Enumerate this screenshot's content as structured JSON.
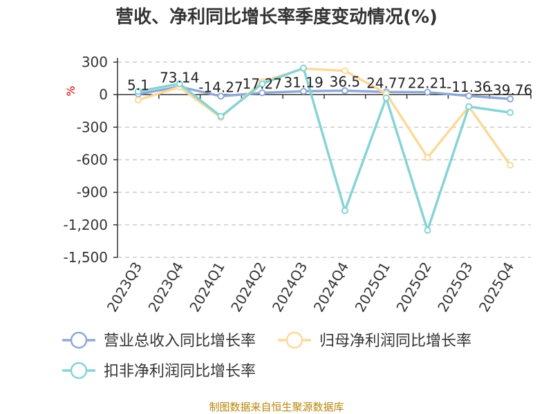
{
  "chart_data": {
    "type": "line",
    "title": "营收、净利同比增长率季度变动情况(%)",
    "unit_label": "%",
    "categories": [
      "2023Q3",
      "2023Q4",
      "2024Q1",
      "2024Q2",
      "2024Q3",
      "2024Q4",
      "2025Q1",
      "2025Q2",
      "2025Q3",
      "2025Q4"
    ],
    "ylim": [
      -1500,
      300
    ],
    "yticks": [
      300,
      0,
      -300,
      -600,
      -900,
      -1200,
      -1500
    ],
    "ytick_labels": [
      "300",
      "0",
      "-300",
      "-600",
      "-900",
      "-1,200",
      "-1,500"
    ],
    "grid": true,
    "legend_position": "bottom",
    "series": [
      {
        "name": "营业总收入同比增长率",
        "color": "#8fa9d6",
        "values": [
          5.1,
          73.14,
          -14.27,
          17.27,
          31.19,
          36.5,
          24.77,
          22.21,
          -11.36,
          -39.76
        ],
        "labels": [
          "5.1",
          "73.14",
          "-14.27",
          "17.27",
          "31.19",
          "36.5",
          "24.77",
          "22.21",
          "-11.36",
          "-39.76"
        ]
      },
      {
        "name": "归母净利润同比增长率",
        "color": "#fbd99b",
        "values": [
          -50,
          70,
          -210,
          120,
          240,
          220,
          10,
          -580,
          -110,
          -650
        ]
      },
      {
        "name": "扣非净利润同比增长率",
        "color": "#86d3d6",
        "values": [
          30,
          100,
          -200,
          100,
          245,
          -1070,
          -30,
          -1250,
          -110,
          -165
        ]
      }
    ]
  },
  "footer": {
    "source": "制图数据来自恒生聚源数据库"
  }
}
